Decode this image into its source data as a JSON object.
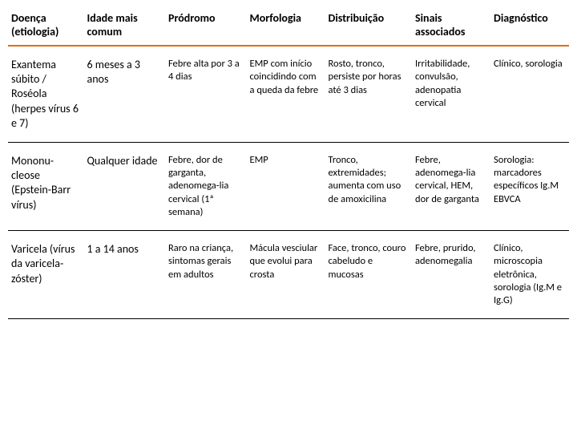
{
  "headers": {
    "c1": "Doença (etiologia)",
    "c2": "Idade mais comum",
    "c3": "Pródromo",
    "c4": "Morfologia",
    "c5": "Distribuição",
    "c6": "Sinais associados",
    "c7": "Diagnóstico"
  },
  "rows": [
    {
      "disease": "Exantema súbito / Roséola (herpes vírus 6 e 7)",
      "age": "6 meses a 3 anos",
      "prodrome": "Febre alta por 3 a 4 dias",
      "morphology": "EMP com início coincidindo com a queda da febre",
      "distribution": "Rosto, tronco, persiste por horas até 3 dias",
      "signs": "Irritabilidade, convulsão, adenopatia cervical",
      "diagnosis": "Clínico, sorologia"
    },
    {
      "disease": "Mononu-cleose (Epstein-Barr vírus)",
      "age": "Qualquer idade",
      "prodrome": "Febre, dor de garganta, adenomega-lia cervical (1ª semana)",
      "morphology": "EMP",
      "distribution": "Tronco, extremidades; aumenta com uso de amoxicilina",
      "signs": "Febre, adenomega-lia cervical, HEM, dor de garganta",
      "diagnosis": "Sorologia: marcadores específicos Ig.M EBVCA"
    },
    {
      "disease": "Varicela (vírus da varicela-zóster)",
      "age": "1 a 14 anos",
      "prodrome": "Raro na criança, sintomas gerais em adultos",
      "morphology": "Mácula vesciular que evolui para crosta",
      "distribution": "Face, tronco, couro cabeludo e mucosas",
      "signs": "Febre, prurido, adenomegalia",
      "diagnosis": "Clínico, microscopia eletrônica, sorologia (Ig.M e Ig.G)"
    }
  ]
}
